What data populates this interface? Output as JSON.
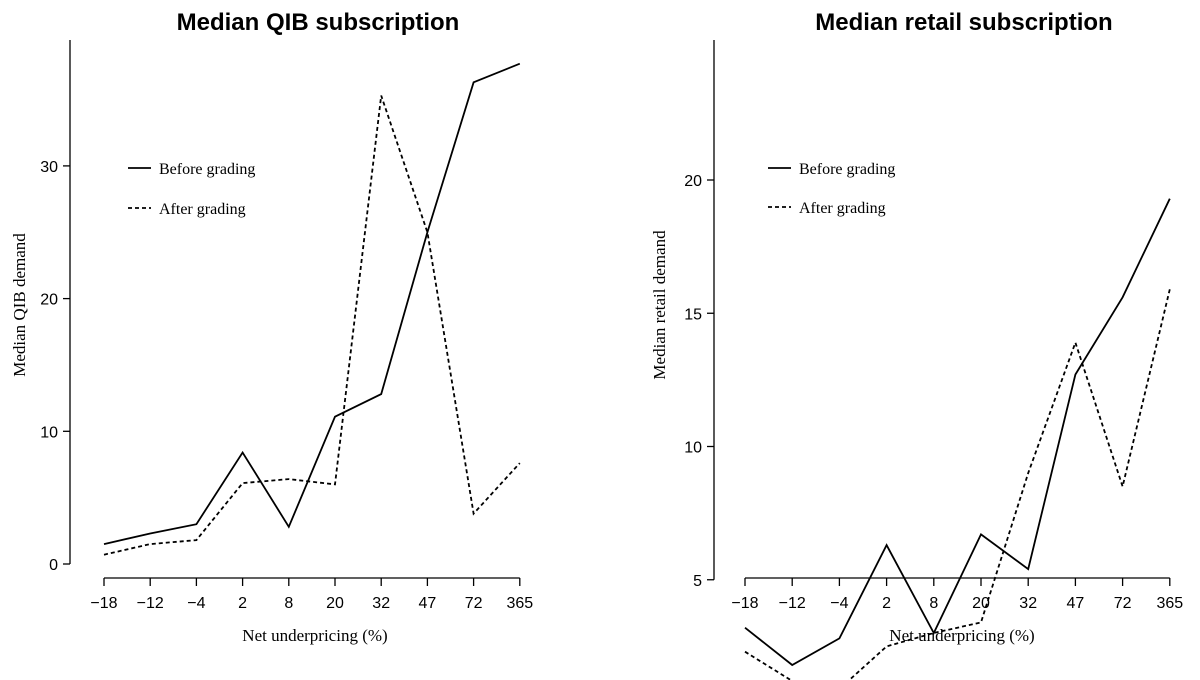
{
  "chart_data": [
    {
      "type": "line",
      "title": "Median QIB subscription",
      "xlabel": "Net underpricing (%)",
      "ylabel": "Median QIB demand",
      "categories": [
        "−18",
        "−12",
        "−4",
        "2",
        "8",
        "20",
        "32",
        "47",
        "72",
        "365"
      ],
      "yticks": [
        0,
        10,
        20,
        30
      ],
      "ylim": [
        -0.5,
        39
      ],
      "grid": false,
      "legend_position": "upper-left",
      "series": [
        {
          "name": "Before grading",
          "dash": "solid",
          "values": [
            1.5,
            2.3,
            3.0,
            8.4,
            2.8,
            11.1,
            12.8,
            25.0,
            36.3,
            37.7
          ]
        },
        {
          "name": "After grading",
          "dash": "dotted",
          "values": [
            0.7,
            1.5,
            1.8,
            6.1,
            6.4,
            6.0,
            35.3,
            25.0,
            3.8,
            7.6
          ]
        }
      ]
    },
    {
      "type": "line",
      "title": "Median retail subscription",
      "xlabel": "Net underpricing (%)",
      "ylabel": "Median retail demand",
      "categories": [
        "−18",
        "−12",
        "−4",
        "2",
        "8",
        "20",
        "32",
        "47",
        "72",
        "365"
      ],
      "yticks": [
        5,
        10,
        15,
        20
      ],
      "ylim": [
        0,
        20
      ],
      "grid": false,
      "legend_position": "upper-left",
      "series": [
        {
          "name": "Before grading",
          "dash": "solid",
          "values": [
            3.2,
            1.8,
            2.8,
            6.3,
            3.0,
            6.7,
            5.4,
            12.7,
            15.6,
            19.3
          ]
        },
        {
          "name": "After grading",
          "dash": "dotted",
          "values": [
            2.3,
            1.2,
            0.9,
            2.5,
            3.0,
            3.4,
            9.0,
            13.9,
            8.5,
            15.9
          ]
        }
      ]
    }
  ]
}
